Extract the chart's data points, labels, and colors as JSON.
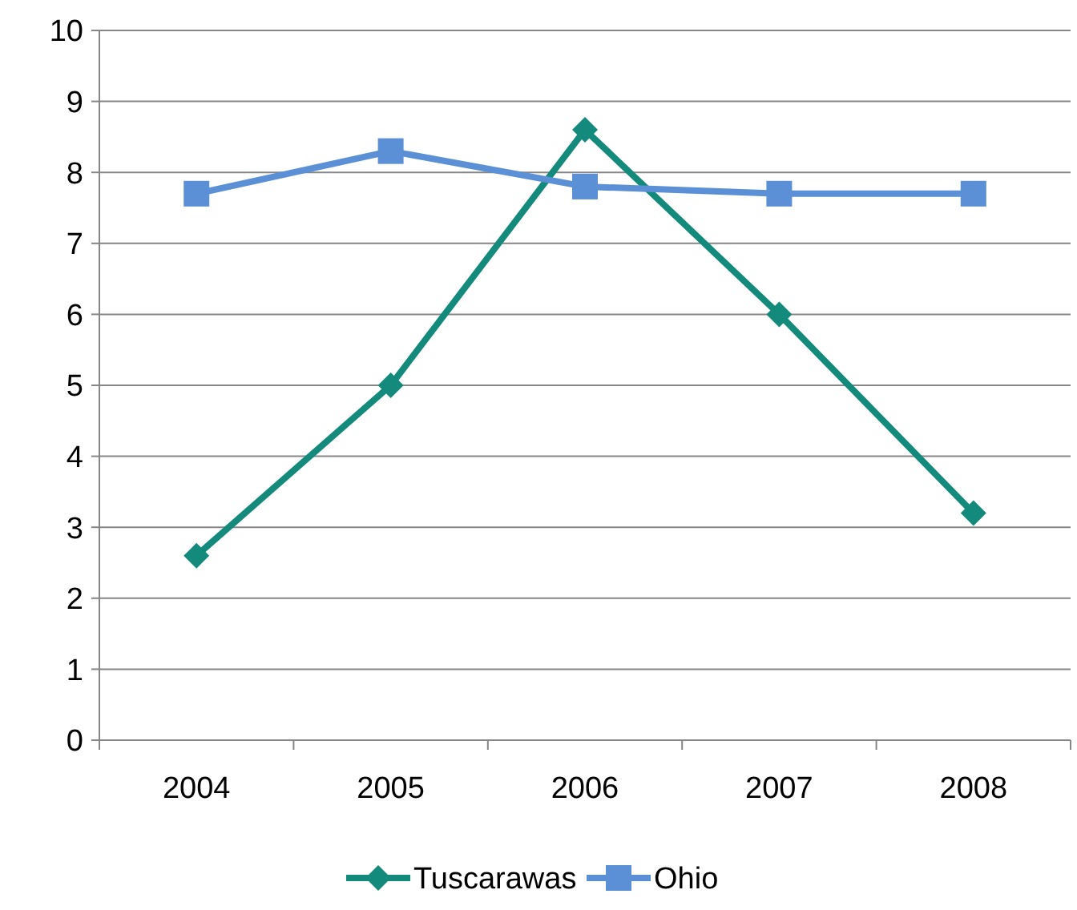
{
  "chart_data": {
    "type": "line",
    "categories": [
      "2004",
      "2005",
      "2006",
      "2007",
      "2008"
    ],
    "series": [
      {
        "name": "Tuscarawas",
        "color": "#138a7b",
        "marker": "diamond",
        "values": [
          2.6,
          5.0,
          8.6,
          6.0,
          3.2
        ]
      },
      {
        "name": "Ohio",
        "color": "#5b8fd6",
        "marker": "square",
        "values": [
          7.7,
          8.3,
          7.8,
          7.7,
          7.7
        ]
      }
    ],
    "ylim": [
      0,
      10
    ],
    "yticks": [
      0,
      1,
      2,
      3,
      4,
      5,
      6,
      7,
      8,
      9,
      10
    ],
    "grid": "y",
    "legend": "bottom",
    "line_style": "solid"
  }
}
